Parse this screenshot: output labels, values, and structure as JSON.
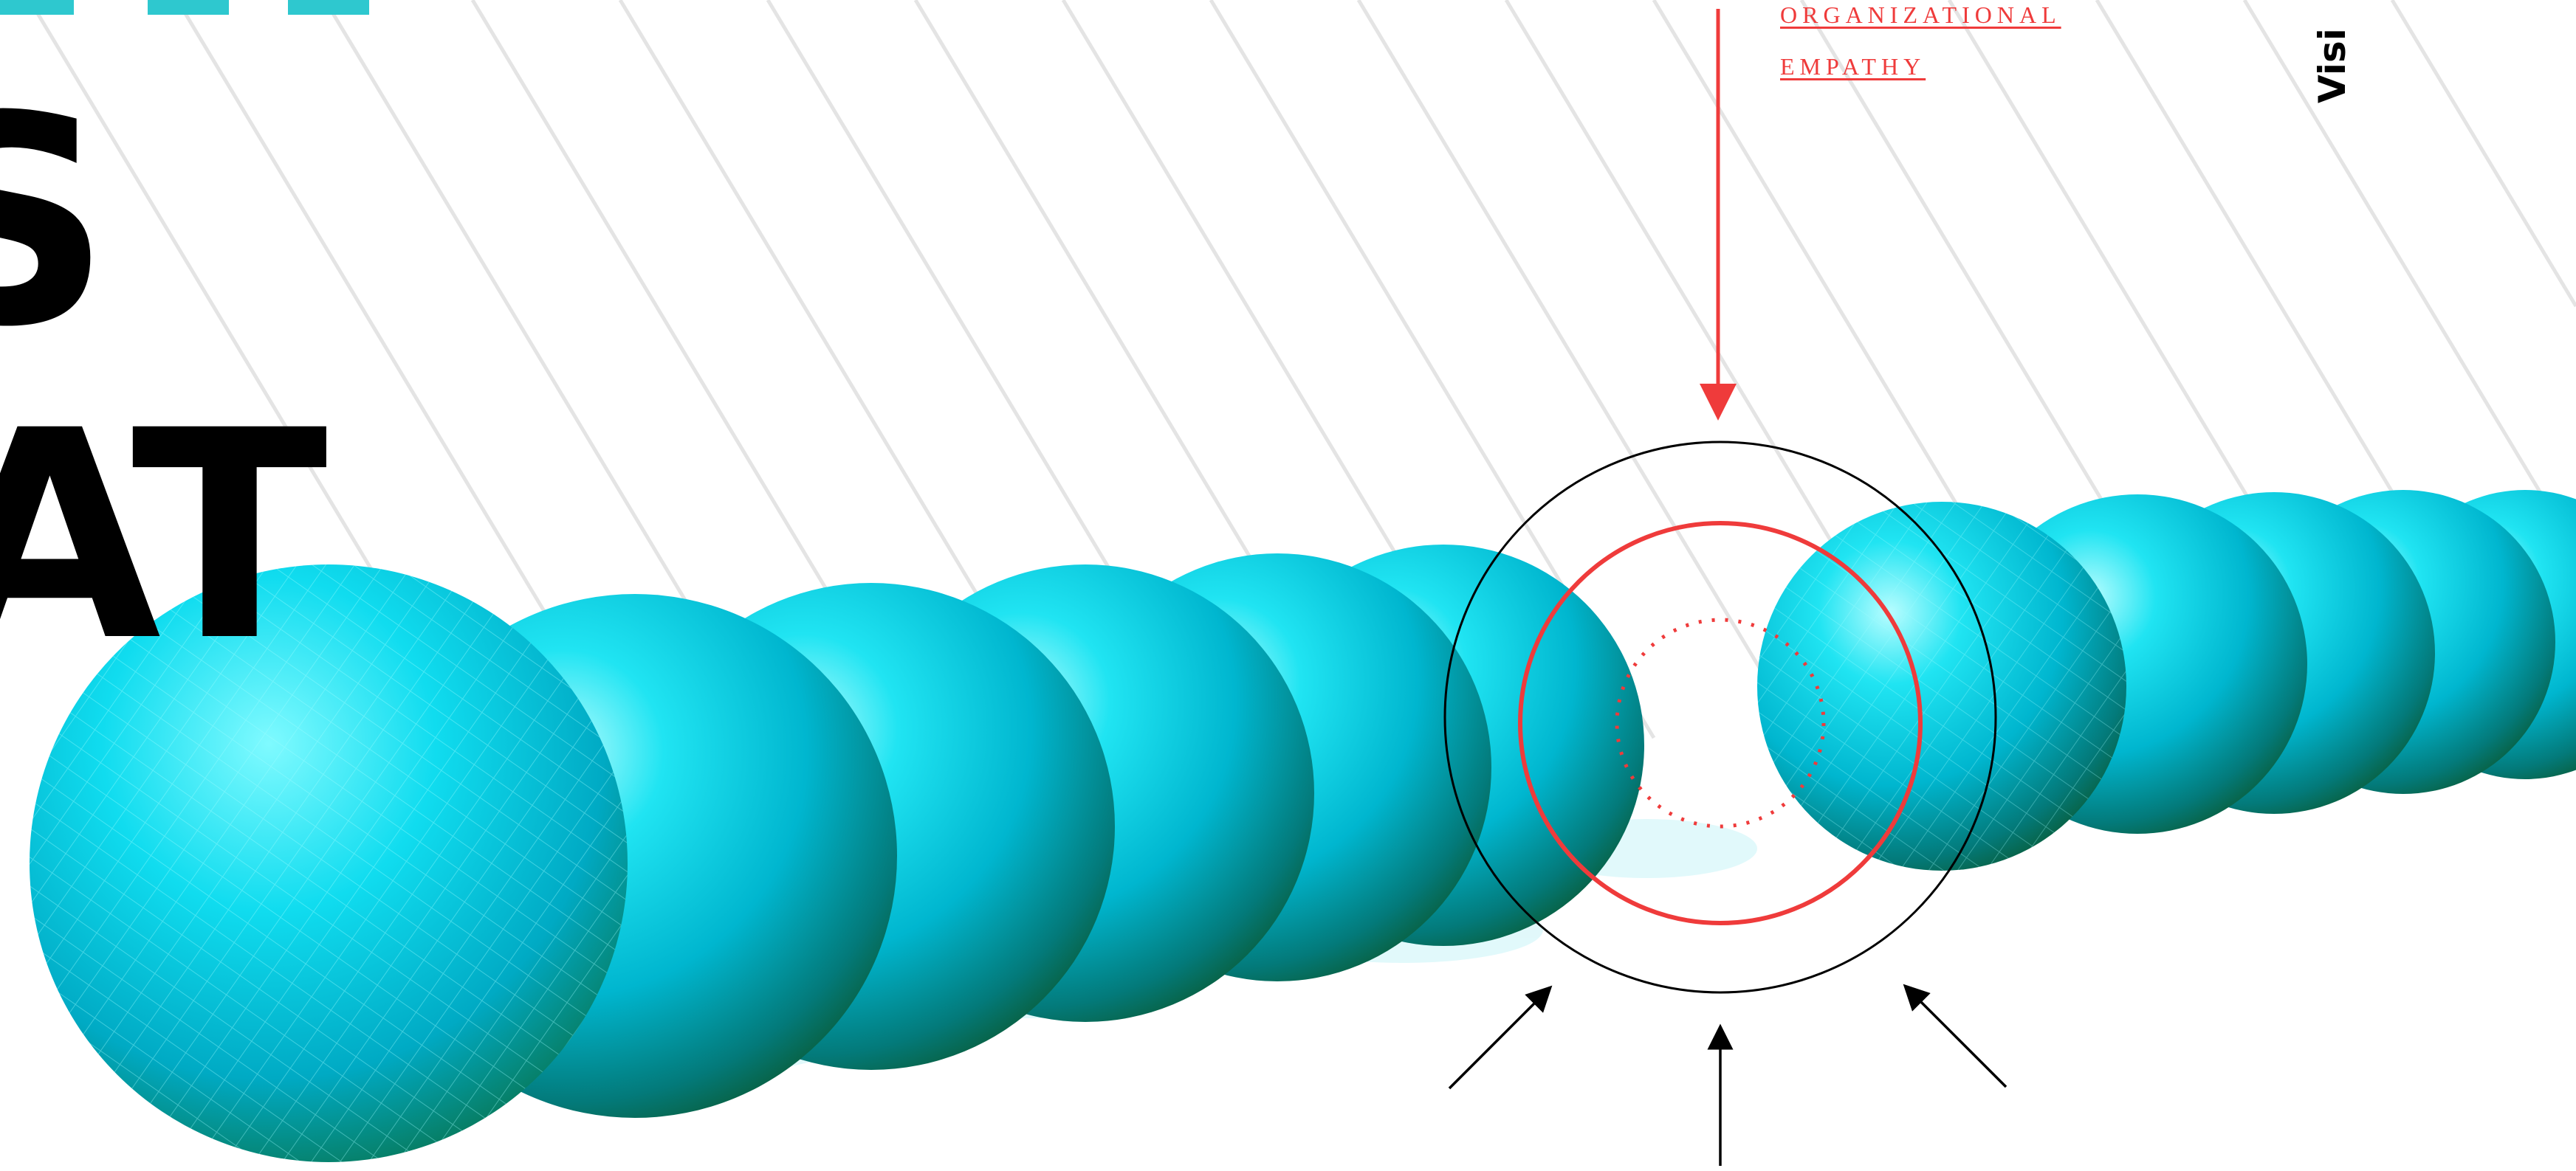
{
  "headline": {
    "line1": "S",
    "line2": "HAT"
  },
  "label": {
    "line1": "ORGANIZATIONAL",
    "line2": "EMPATHY"
  },
  "side_label": "Visi",
  "colors": {
    "accent_red": "#ef3b3b",
    "sphere_cyan": "#00d8e8",
    "sphere_shadow": "#0a6a3a",
    "top_bar_teal": "#2ec8cf",
    "text": "#000000"
  },
  "icons": [
    "arrow-down-icon",
    "arrow-up-icon",
    "arrow-diagonal-icon",
    "target-rings-icon",
    "sphere-icon"
  ]
}
